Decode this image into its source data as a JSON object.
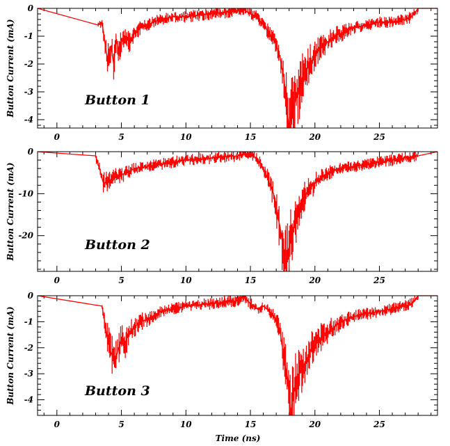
{
  "chart_data": [
    {
      "type": "line",
      "panel_label": "Button 1",
      "ylabel": "Button Current (mA)",
      "xlabel": "",
      "xlim": [
        -1.5,
        29.5
      ],
      "ylim": [
        -4.3,
        0
      ],
      "x_ticks": [
        "0",
        "5",
        "10",
        "15",
        "20",
        "25"
      ],
      "y_ticks": [
        "0",
        "-1",
        "-2",
        "-3",
        "-4"
      ],
      "y_tick_values": [
        0,
        -1,
        -2,
        -3,
        -4
      ],
      "series": [
        {
          "color": "#ff0000",
          "x": [
            -1.5,
            3.2,
            3.5,
            3.8,
            4.0,
            4.2,
            4.4,
            4.6,
            4.8,
            5.0,
            5.3,
            5.6,
            6.0,
            6.5,
            7.0,
            7.5,
            8.0,
            8.5,
            9.0,
            10.0,
            11.0,
            12.0,
            13.0,
            14.0,
            14.5,
            15.0,
            15.5,
            16.0,
            16.5,
            17.0,
            17.3,
            17.6,
            17.8,
            18.0,
            18.2,
            18.5,
            18.8,
            19.0,
            19.3,
            19.6,
            20.0,
            20.5,
            21.0,
            21.5,
            22.0,
            22.5,
            23.0,
            24.0,
            25.0,
            26.0,
            27.0,
            27.5,
            28.0,
            29.5
          ],
          "y": [
            0,
            -0.6,
            -0.5,
            -1.5,
            -1.9,
            -1.4,
            -2.0,
            -1.1,
            -1.5,
            -1.2,
            -1.0,
            -1.2,
            -0.9,
            -0.7,
            -0.6,
            -0.5,
            -0.4,
            -0.35,
            -0.3,
            -0.3,
            -0.25,
            -0.2,
            -0.15,
            -0.1,
            -0.05,
            -0.2,
            -0.3,
            -0.6,
            -0.9,
            -1.3,
            -1.8,
            -2.5,
            -3.5,
            -4.3,
            -3.8,
            -3.3,
            -3.0,
            -2.5,
            -2.2,
            -2.0,
            -1.7,
            -1.4,
            -1.2,
            -1.0,
            -0.9,
            -0.8,
            -0.7,
            -0.6,
            -0.5,
            -0.5,
            -0.4,
            -0.3,
            0,
            0
          ]
        }
      ]
    },
    {
      "type": "line",
      "panel_label": "Button 2",
      "ylabel": "Button Current (mA)",
      "xlabel": "",
      "xlim": [
        -1.5,
        29.5
      ],
      "ylim": [
        -28.5,
        0
      ],
      "x_ticks": [
        "0",
        "5",
        "10",
        "15",
        "20",
        "25"
      ],
      "y_ticks": [
        "0",
        "-10",
        "-20"
      ],
      "y_tick_values": [
        0,
        -10,
        -20
      ],
      "series": [
        {
          "color": "#ff0000",
          "x": [
            -1.5,
            3.0,
            3.3,
            3.6,
            4.0,
            4.5,
            5.0,
            5.5,
            6.0,
            7.0,
            8.0,
            9.0,
            10.0,
            11.0,
            12.0,
            13.0,
            14.0,
            14.8,
            15.2,
            15.6,
            16.0,
            16.3,
            16.6,
            16.9,
            17.1,
            17.3,
            17.5,
            17.7,
            17.9,
            18.2,
            18.5,
            18.8,
            19.1,
            19.5,
            20.0,
            20.5,
            21.0,
            21.5,
            22.0,
            23.0,
            24.0,
            25.0,
            26.0,
            27.0,
            28.0,
            29.5
          ],
          "y": [
            0,
            -1.0,
            -4.0,
            -7.5,
            -7.0,
            -6.0,
            -5.5,
            -5.0,
            -4.0,
            -3.5,
            -3.0,
            -2.5,
            -2.0,
            -1.8,
            -1.5,
            -1.2,
            -1.0,
            -0.5,
            -1.0,
            -2.0,
            -4.0,
            -6.0,
            -8.5,
            -11.0,
            -15.0,
            -18.0,
            -22.0,
            -27.5,
            -24.0,
            -20.0,
            -17.0,
            -14.0,
            -11.0,
            -9.0,
            -7.5,
            -6.0,
            -5.0,
            -4.5,
            -4.0,
            -3.5,
            -3.0,
            -2.5,
            -2.0,
            -1.5,
            -1.0,
            0
          ]
        }
      ]
    },
    {
      "type": "line",
      "panel_label": "Button 3",
      "ylabel": "Button Current (mA)",
      "xlabel": "Time (ns)",
      "xlim": [
        -1.5,
        29.5
      ],
      "ylim": [
        -4.6,
        0
      ],
      "x_ticks": [
        "0",
        "5",
        "10",
        "15",
        "20",
        "25"
      ],
      "y_ticks": [
        "0",
        "-1",
        "-2",
        "-3",
        "-4"
      ],
      "y_tick_values": [
        0,
        -1,
        -2,
        -3,
        -4
      ],
      "series": [
        {
          "color": "#ff0000",
          "x": [
            -1.5,
            3.5,
            3.8,
            4.0,
            4.2,
            4.5,
            4.8,
            5.0,
            5.3,
            5.6,
            6.0,
            6.5,
            7.0,
            7.5,
            8.0,
            9.0,
            10.0,
            11.0,
            12.0,
            13.0,
            14.0,
            14.5,
            15.0,
            15.5,
            16.0,
            16.5,
            17.0,
            17.3,
            17.6,
            17.9,
            18.1,
            18.3,
            18.6,
            19.0,
            19.4,
            19.8,
            20.2,
            20.6,
            21.0,
            21.5,
            22.0,
            22.5,
            23.0,
            24.0,
            25.0,
            26.0,
            27.0,
            27.5,
            28.0,
            29.5
          ],
          "y": [
            0,
            -0.4,
            -1.3,
            -1.8,
            -2.2,
            -2.5,
            -2.0,
            -1.6,
            -1.8,
            -1.4,
            -1.2,
            -1.0,
            -0.9,
            -0.8,
            -0.6,
            -0.5,
            -0.4,
            -0.35,
            -0.3,
            -0.25,
            -0.2,
            -0.05,
            -0.3,
            -0.5,
            -0.4,
            -0.6,
            -0.9,
            -1.4,
            -2.4,
            -3.2,
            -4.6,
            -3.8,
            -3.2,
            -2.8,
            -2.4,
            -2.0,
            -1.8,
            -1.5,
            -1.4,
            -1.2,
            -1.0,
            -0.9,
            -0.8,
            -0.7,
            -0.6,
            -0.5,
            -0.4,
            -0.3,
            0,
            0
          ]
        }
      ]
    }
  ]
}
